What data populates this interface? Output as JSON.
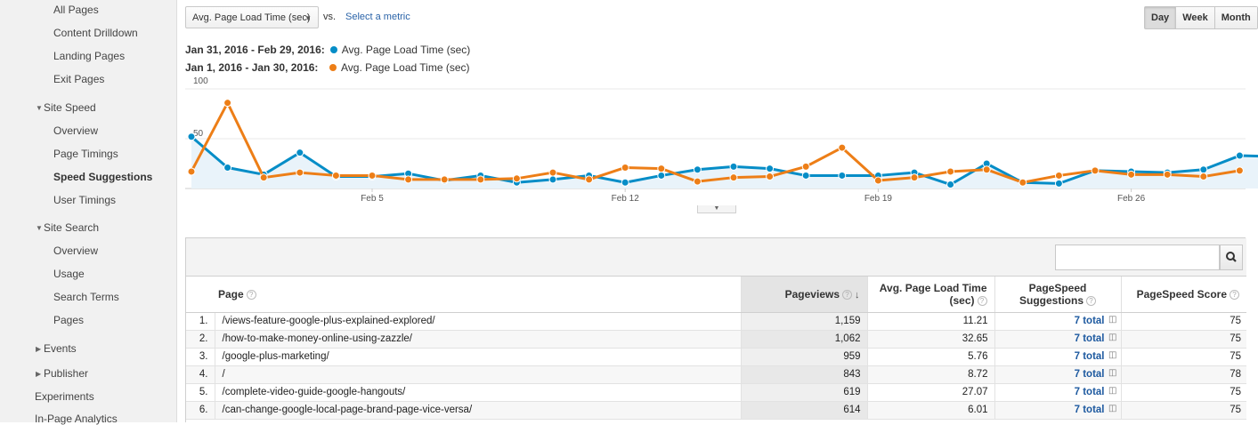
{
  "sidebar": {
    "items": [
      {
        "label": "All Pages"
      },
      {
        "label": "Content Drilldown"
      },
      {
        "label": "Landing Pages"
      },
      {
        "label": "Exit Pages"
      },
      {
        "label": "Site Speed"
      },
      {
        "label": "Overview"
      },
      {
        "label": "Page Timings"
      },
      {
        "label": "Speed Suggestions"
      },
      {
        "label": "User Timings"
      },
      {
        "label": "Site Search"
      },
      {
        "label": "Overview"
      },
      {
        "label": "Usage"
      },
      {
        "label": "Search Terms"
      },
      {
        "label": "Pages"
      },
      {
        "label": "Events"
      },
      {
        "label": "Publisher"
      },
      {
        "label": "Experiments"
      },
      {
        "label": "In-Page Analytics"
      }
    ]
  },
  "toolbar": {
    "metric": "Avg. Page Load Time (sec)",
    "vs": "vs.",
    "select_metric": "Select a metric",
    "granularity": [
      "Day",
      "Week",
      "Month"
    ],
    "active_granularity": "Day"
  },
  "legend": [
    {
      "range": "Jan 31, 2016 - Feb 29, 2016:",
      "metric": "Avg. Page Load Time (sec)",
      "color": "#058dc7"
    },
    {
      "range": "Jan 1, 2016 - Jan 30, 2016:",
      "metric": "Avg. Page Load Time (sec)",
      "color": "#ed7e17"
    }
  ],
  "chart_data": {
    "type": "line",
    "title": "",
    "xlabel": "",
    "ylabel": "",
    "ylim": [
      0,
      100
    ],
    "y_ticks": [
      "100",
      "50"
    ],
    "x_tick_labels": [
      "Feb 5",
      "Feb 12",
      "Feb 19",
      "Feb 26"
    ],
    "x_tick_index": [
      5,
      12,
      19,
      26
    ],
    "series": [
      {
        "name": "Jan 31, 2016 - Feb 29, 2016",
        "color": "#058dc7",
        "values": [
          52,
          21,
          14,
          36,
          12,
          12,
          15,
          8,
          13,
          6,
          9,
          13,
          6,
          13,
          19,
          22,
          20,
          13,
          13,
          13,
          16,
          4,
          25,
          6,
          5,
          18,
          17,
          16,
          19,
          33,
          32
        ]
      },
      {
        "name": "Jan 1, 2016 - Jan 30, 2016",
        "color": "#ed7e17",
        "values": [
          17,
          86,
          11,
          16,
          13,
          13,
          9,
          9,
          9,
          10,
          16,
          9,
          21,
          20,
          7,
          11,
          12,
          22,
          41,
          8,
          11,
          17,
          19,
          6,
          13,
          18,
          14,
          14,
          12,
          18
        ]
      }
    ]
  },
  "table": {
    "headers": {
      "page": "Page",
      "pageviews": "Pageviews",
      "load_time_1": "Avg. Page Load Time",
      "load_time_2": "(sec)",
      "suggestions_1": "PageSpeed",
      "suggestions_2": "Suggestions",
      "score": "PageSpeed Score"
    },
    "rows": [
      {
        "idx": "1.",
        "page": "/views-feature-google-plus-explained-explored/",
        "pageviews": "1,159",
        "load_time": "11.21",
        "suggestions": "7 total",
        "score": "75"
      },
      {
        "idx": "2.",
        "page": "/how-to-make-money-online-using-zazzle/",
        "pageviews": "1,062",
        "load_time": "32.65",
        "suggestions": "7 total",
        "score": "75"
      },
      {
        "idx": "3.",
        "page": "/google-plus-marketing/",
        "pageviews": "959",
        "load_time": "5.76",
        "suggestions": "7 total",
        "score": "75"
      },
      {
        "idx": "4.",
        "page": "/",
        "pageviews": "843",
        "load_time": "8.72",
        "suggestions": "7 total",
        "score": "78"
      },
      {
        "idx": "5.",
        "page": "/complete-video-guide-google-hangouts/",
        "pageviews": "619",
        "load_time": "27.07",
        "suggestions": "7 total",
        "score": "75"
      },
      {
        "idx": "6.",
        "page": "/can-change-google-local-page-brand-page-vice-versa/",
        "pageviews": "614",
        "load_time": "6.01",
        "suggestions": "7 total",
        "score": "75"
      }
    ]
  }
}
